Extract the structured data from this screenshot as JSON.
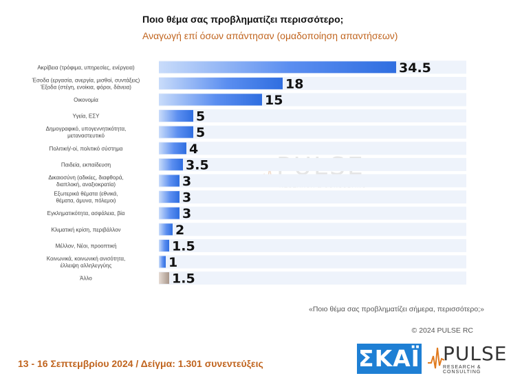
{
  "header": {
    "title": "Ποιο θέμα σας προβληματίζει περισσότερο;",
    "subtitle": "Αναγωγή επί όσων απάντησαν   (ομαδοποίηση απαντήσεων)"
  },
  "chart_data": {
    "type": "bar",
    "orientation": "horizontal",
    "categories": [
      [
        "Ακρίβεια (τρόφιμα, υπηρεσίες, ενέργεια)"
      ],
      [
        "Έσοδα (εργασία, ανεργία, μισθοί, συντάξεις)",
        "Έξοδα (στέγη, ενοίκια, φόροι, δάνεια)"
      ],
      [
        "Οικονομία"
      ],
      [
        "Υγεία, ΕΣΥ"
      ],
      [
        "Δημογραφικό, υπογεννητικότητα,",
        "μεταναστευτικό"
      ],
      [
        "Πολιτική/-οί, πολιτικό σύστημα"
      ],
      [
        "Παιδεία, εκπαίδευση"
      ],
      [
        "Δικαιοσύνη (αδικίες, διαφθορά,",
        "διαπλοκή, αναξιοκρατία)"
      ],
      [
        "Εξωτερικά θέματα (εθνικά,",
        "θέματα, άμυνα, πόλεμοι)"
      ],
      [
        "Εγκληματικότητα, ασφάλεια, βία"
      ],
      [
        "Κλιματική κρίση, περιβάλλον"
      ],
      [
        "Μέλλον, Νέοι, προοπτική"
      ],
      [
        "Κοινωνικά, κοινωνική ανισότητα,",
        "έλλειψη αλληλεγγύης"
      ],
      [
        "Άλλο"
      ]
    ],
    "values": [
      34.5,
      18,
      15,
      5,
      5,
      4,
      3.5,
      3,
      3,
      3,
      2,
      1.5,
      1,
      1.5
    ],
    "value_labels": [
      "34.5",
      "18",
      "15",
      "5",
      "5",
      "4",
      "3.5",
      "3",
      "3",
      "3",
      "2",
      "1.5",
      "1",
      "1.5"
    ],
    "xlim": [
      0,
      34.5
    ],
    "colors": {
      "bar": "#2f6ee0",
      "bar_light": "#c9dcfa",
      "other_bar": "#b8a89c",
      "row_band": "#eef3fb"
    }
  },
  "watermark": {
    "word": "PULSE",
    "sub": "RESEARCH & CONSULTING"
  },
  "footer": {
    "question": "«Ποιο θέμα σας προβληματίζει σήμερα, περισσότερο;»",
    "copyright": "© 2024 PULSE RC",
    "info": "13 - 16 Σεπτεμβρίου 2024  /  Δείγμα:  1.301 συνεντεύξεις"
  },
  "logos": {
    "skai": "ΣΚΑΪ",
    "pulse": "PULSE",
    "pulse_sub": "RESEARCH & CONSULTING"
  }
}
